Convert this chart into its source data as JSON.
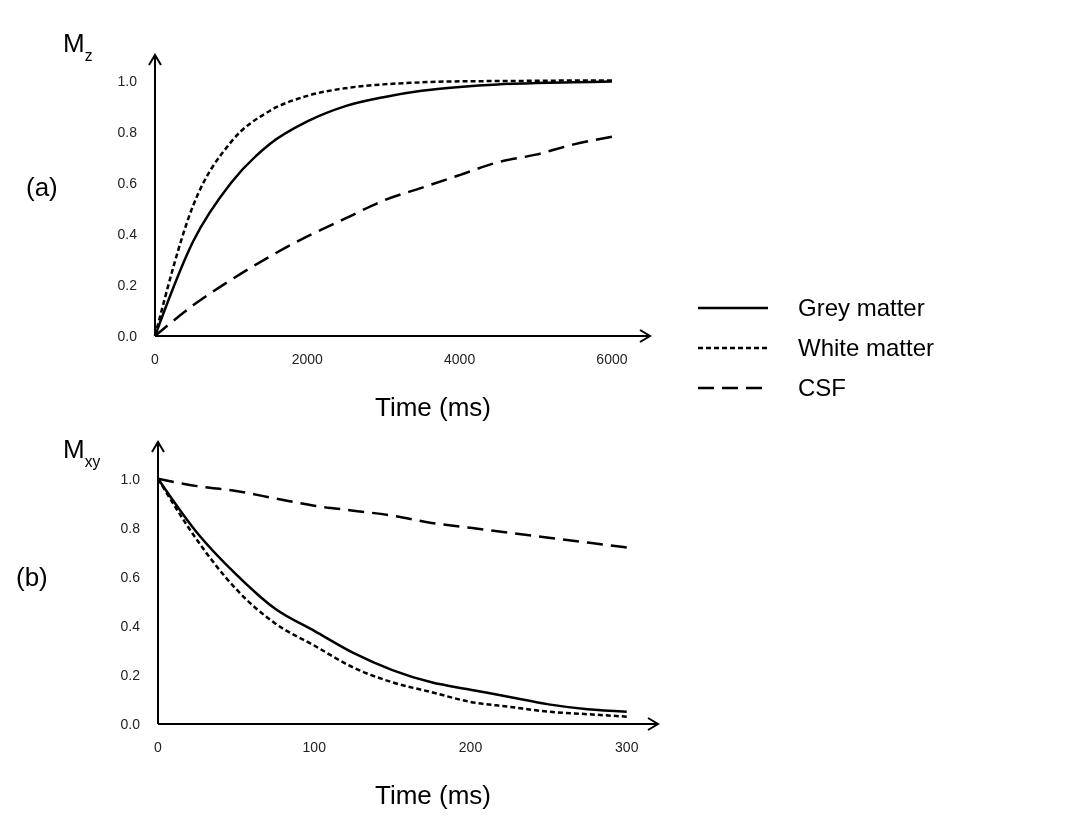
{
  "chart_data": [
    {
      "type": "line",
      "x": [
        0,
        500,
        1000,
        1500,
        2000,
        2500,
        3000,
        3500,
        4000,
        4500,
        5000,
        5500,
        6000
      ],
      "xlim": [
        0,
        6500
      ],
      "xticks": [
        0,
        2000,
        4000,
        6000
      ],
      "ylim": [
        0,
        1.1
      ],
      "yticks": [
        {
          "value": 0,
          "label": "0.0"
        },
        {
          "value": 0.2,
          "label": "0.2"
        },
        {
          "value": 0.4,
          "label": "0.4"
        },
        {
          "value": 0.6,
          "label": "0.6"
        },
        {
          "value": 0.8,
          "label": "0.8"
        },
        {
          "value": 1,
          "label": "1.0"
        }
      ],
      "xlabel": "Time (ms)",
      "ylabel": "M$_{z}$",
      "annotations": [
        "(a)"
      ],
      "legend": "bottom right",
      "series": [
        {
          "name": "Grey matter",
          "color": "#000000",
          "line_style": "solid",
          "values": [
            0,
            0.37,
            0.6,
            0.75,
            0.84,
            0.9,
            0.935,
            0.96,
            0.975,
            0.985,
            0.99,
            0.993,
            0.996
          ]
        },
        {
          "name": "White matter",
          "color": "#000000",
          "line_style": "dotted",
          "values": [
            0,
            0.51,
            0.76,
            0.88,
            0.94,
            0.97,
            0.985,
            0.993,
            0.997,
            0.998,
            0.999,
            1,
            1
          ]
        },
        {
          "name": "CSF",
          "color": "#000000",
          "line_style": "dashed",
          "values": [
            0,
            0.12,
            0.22,
            0.31,
            0.39,
            0.46,
            0.53,
            0.58,
            0.63,
            0.68,
            0.71,
            0.75,
            0.78
          ]
        }
      ]
    },
    {
      "type": "line",
      "x": [
        0,
        25,
        50,
        75,
        100,
        125,
        150,
        175,
        200,
        225,
        250,
        275,
        300
      ],
      "xlim": [
        0,
        320
      ],
      "xticks": [
        0,
        100,
        200,
        300
      ],
      "ylim": [
        0,
        1.15
      ],
      "yticks": [
        {
          "value": 0,
          "label": "0.0"
        },
        {
          "value": 0.2,
          "label": "0.2"
        },
        {
          "value": 0.4,
          "label": "0.4"
        },
        {
          "value": 0.6,
          "label": "0.6"
        },
        {
          "value": 0.8,
          "label": "0.8"
        },
        {
          "value": 1,
          "label": "1.0"
        }
      ],
      "xlabel": "Time (ms)",
      "ylabel": "M$_{xy}$",
      "annotations": [
        "(b)"
      ],
      "series": [
        {
          "color": "#000000",
          "line_style": "solid",
          "values": [
            1,
            0.78,
            0.61,
            0.47,
            0.38,
            0.29,
            0.22,
            0.17,
            0.14,
            0.11,
            0.08,
            0.06,
            0.05
          ]
        },
        {
          "color": "#000000",
          "line_style": "dotted",
          "values": [
            1,
            0.75,
            0.55,
            0.41,
            0.32,
            0.23,
            0.17,
            0.13,
            0.09,
            0.07,
            0.05,
            0.04,
            0.03
          ]
        },
        {
          "color": "#000000",
          "line_style": "dashed",
          "values": [
            1,
            0.97,
            0.95,
            0.92,
            0.89,
            0.87,
            0.85,
            0.82,
            0.8,
            0.78,
            0.76,
            0.74,
            0.72
          ]
        }
      ]
    }
  ]
}
